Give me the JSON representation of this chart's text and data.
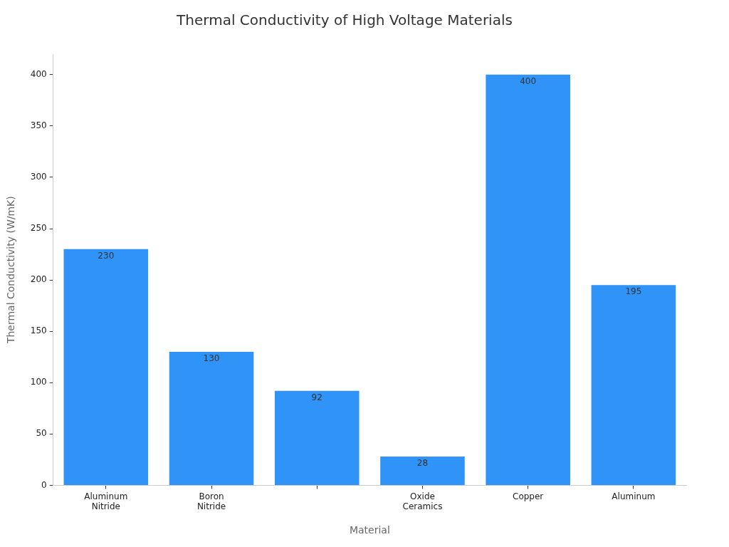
{
  "chart_data": {
    "type": "bar",
    "title": "Thermal Conductivity of High Voltage Materials",
    "xlabel": "Material",
    "ylabel": "Thermal Conductivity (W/mK)",
    "categories": [
      "Aluminum Nitride",
      "Boron Nitride",
      null,
      "Oxide Ceramics",
      "Copper",
      "Aluminum"
    ],
    "values": [
      230,
      130,
      92,
      28,
      400,
      195
    ],
    "color": "#2f93f7",
    "ylim": [
      0,
      420
    ],
    "yticks": [
      0,
      50,
      100,
      150,
      200,
      250,
      300,
      350,
      400
    ],
    "data_labels": true
  }
}
